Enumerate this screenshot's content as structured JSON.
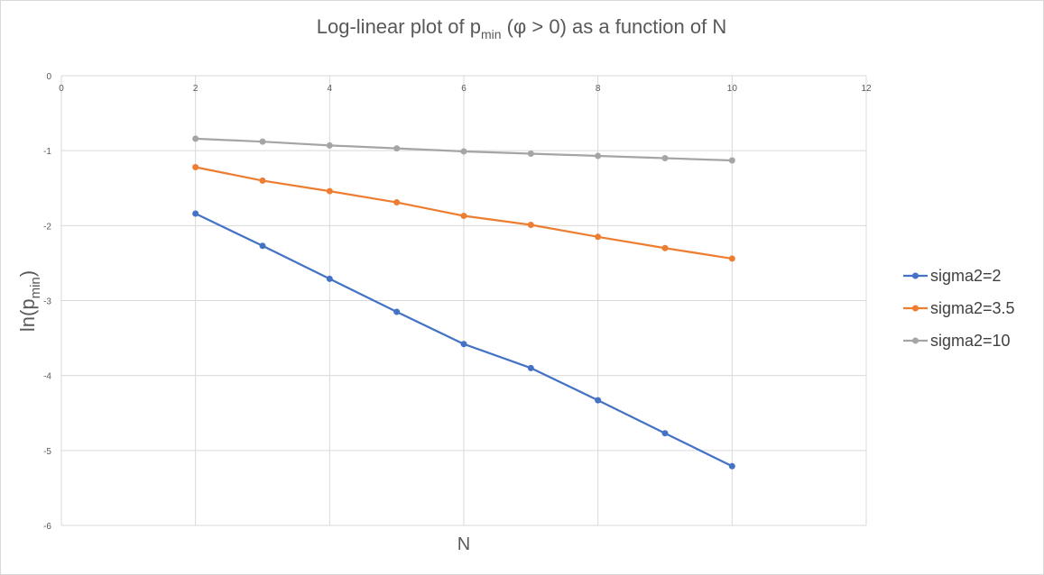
{
  "chart_data": {
    "type": "line",
    "title": {
      "prefix": "Log-linear plot of p",
      "subscript": "min",
      "suffix": " (φ > 0) as a function of N"
    },
    "xlabel": "N",
    "ylabel": {
      "prefix": "ln(p",
      "subscript": "min",
      "suffix": ")"
    },
    "xlim": [
      0,
      12
    ],
    "ylim": [
      -6,
      0
    ],
    "xticks": [
      0,
      2,
      4,
      6,
      8,
      10,
      12
    ],
    "yticks": [
      0,
      -1,
      -2,
      -3,
      -4,
      -5,
      -6
    ],
    "x_axis_position": "top",
    "grid": true,
    "legend": "right",
    "x": [
      2,
      3,
      4,
      5,
      6,
      7,
      8,
      9,
      10
    ],
    "series": [
      {
        "name": "sigma2=2",
        "color": "#4472C4",
        "values": [
          -1.84,
          -2.27,
          -2.71,
          -3.15,
          -3.58,
          -3.9,
          -4.33,
          -4.77,
          -5.21
        ]
      },
      {
        "name": "sigma2=3.5",
        "color": "#ED7D31",
        "values": [
          -1.22,
          -1.4,
          -1.54,
          -1.69,
          -1.87,
          -1.99,
          -2.15,
          -2.3,
          -2.44
        ]
      },
      {
        "name": "sigma2=10",
        "color": "#A5A5A5",
        "values": [
          -0.84,
          -0.88,
          -0.93,
          -0.97,
          -1.01,
          -1.04,
          -1.07,
          -1.1,
          -1.13
        ]
      }
    ]
  }
}
